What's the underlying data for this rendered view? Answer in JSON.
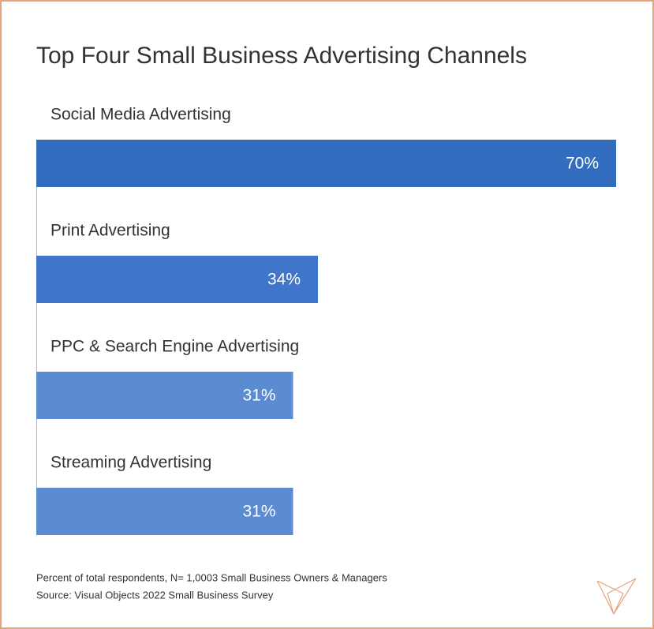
{
  "chart_data": {
    "type": "hbar",
    "title": "Top Four Small Business Advertising Channels",
    "categories": [
      "Social Media Advertising",
      "Print Advertising",
      "PPC & Search Engine Advertising",
      "Streaming Advertising"
    ],
    "values": [
      70,
      34,
      31,
      31
    ],
    "value_labels": [
      "70%",
      "34%",
      "31%",
      "31%"
    ],
    "colors": [
      "#326dc0",
      "#3f76cb",
      "#5b8bd1",
      "#5b8bd1"
    ],
    "xlim": [
      0,
      70
    ],
    "notes": [
      "Percent of total respondents, N= 1,0003 Small Business Owners & Managers",
      "Source: Visual Objects 2022 Small Business Survey"
    ]
  }
}
